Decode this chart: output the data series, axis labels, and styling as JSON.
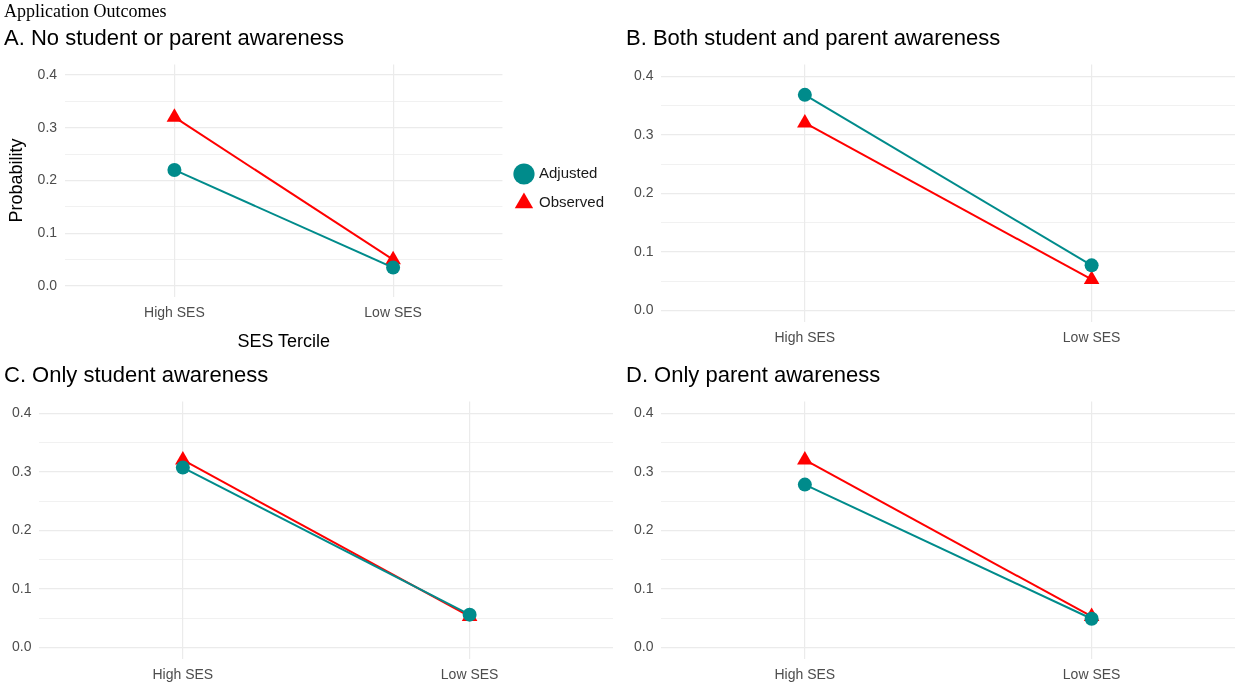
{
  "chart_data": [
    {
      "type": "line",
      "title": "A. No student or parent awareness",
      "annotations": [
        "Application Outcomes"
      ],
      "xlabel": "SES Tercile",
      "ylabel": "Probability",
      "categories": [
        "High SES",
        "Low SES"
      ],
      "series": [
        {
          "name": "Adjusted",
          "color": "#008b8b",
          "values": [
            0.22,
            0.035
          ],
          "marker": "circle"
        },
        {
          "name": "Observed",
          "color": "#ff0000",
          "values": [
            0.32,
            0.05
          ],
          "marker": "triangle"
        }
      ],
      "ylim": [
        -0.02,
        0.42
      ],
      "yticks": [
        {
          "value": 0,
          "label": "0.0"
        },
        {
          "value": 0.05,
          "label": null
        },
        0.1,
        {
          "value": 0.15,
          "label": null
        },
        0.2,
        {
          "value": 0.25,
          "label": null
        },
        0.3,
        {
          "value": 0.35,
          "label": null
        },
        0.4
      ],
      "grid": true,
      "legend": "right"
    },
    {
      "type": "line",
      "title": "B. Both student and parent awareness",
      "categories": [
        "High SES",
        "Low SES"
      ],
      "series": [
        {
          "color": "#008b8b",
          "values": [
            0.368,
            0.077
          ],
          "marker": "circle"
        },
        {
          "color": "#ff0000",
          "values": [
            0.32,
            0.053
          ],
          "marker": "triangle"
        }
      ],
      "ylim": [
        -0.02,
        0.42
      ],
      "yticks": [
        {
          "value": 0,
          "label": "0.0"
        },
        {
          "value": 0.05,
          "label": null
        },
        0.1,
        {
          "value": 0.15,
          "label": null
        },
        0.2,
        {
          "value": 0.25,
          "label": null
        },
        0.3,
        {
          "value": 0.35,
          "label": null
        },
        0.4
      ],
      "grid": true
    },
    {
      "type": "line",
      "title": "C. Only student awareness",
      "categories": [
        "High SES",
        "Low SES"
      ],
      "series": [
        {
          "color": "#008b8b",
          "values": [
            0.307,
            0.056
          ],
          "marker": "circle"
        },
        {
          "color": "#ff0000",
          "values": [
            0.32,
            0.053
          ],
          "marker": "triangle"
        }
      ],
      "ylim": [
        -0.02,
        0.42
      ],
      "yticks": [
        {
          "value": 0,
          "label": "0.0"
        },
        {
          "value": 0.05,
          "label": null
        },
        0.1,
        {
          "value": 0.15,
          "label": null
        },
        0.2,
        {
          "value": 0.25,
          "label": null
        },
        0.3,
        {
          "value": 0.35,
          "label": null
        },
        0.4
      ],
      "grid": true
    },
    {
      "type": "line",
      "title": "D. Only parent awareness",
      "categories": [
        "High SES",
        "Low SES"
      ],
      "series": [
        {
          "color": "#008b8b",
          "values": [
            0.278,
            0.049
          ],
          "marker": "circle"
        },
        {
          "color": "#ff0000",
          "values": [
            0.32,
            0.053
          ],
          "marker": "triangle"
        }
      ],
      "ylim": [
        -0.02,
        0.42
      ],
      "yticks": [
        {
          "value": 0,
          "label": "0.0"
        },
        {
          "value": 0.05,
          "label": null
        },
        0.1,
        {
          "value": 0.15,
          "label": null
        },
        0.2,
        {
          "value": 0.25,
          "label": null
        },
        0.3,
        {
          "value": 0.35,
          "label": null
        },
        0.4
      ],
      "grid": true
    }
  ]
}
